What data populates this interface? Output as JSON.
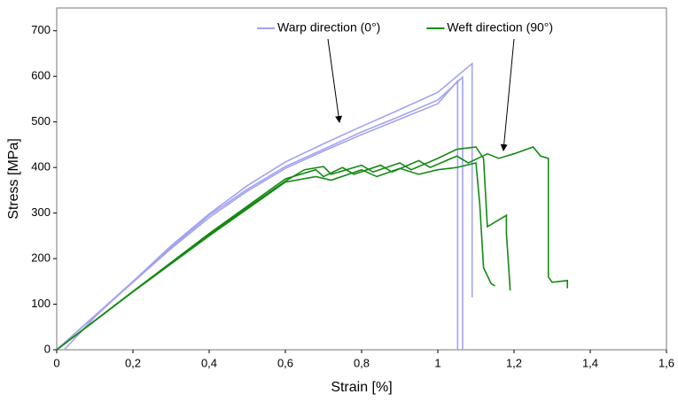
{
  "chart_data": {
    "type": "line",
    "x_label": "Strain [%]",
    "y_label": "Stress [MPa]",
    "xlim": [
      0,
      1.6
    ],
    "ylim": [
      0,
      750
    ],
    "xticks": [
      0,
      {
        "value": 0.2,
        "label": "0,2"
      },
      {
        "value": 0.4,
        "label": "0,4"
      },
      {
        "value": 0.6,
        "label": "0,6"
      },
      {
        "value": 0.8,
        "label": "0,8"
      },
      1,
      {
        "value": 1.2,
        "label": "1,2"
      },
      {
        "value": 1.4,
        "label": "1,4"
      },
      {
        "value": 1.6,
        "label": "1,6"
      }
    ],
    "yticks": [
      0,
      100,
      200,
      300,
      400,
      500,
      600,
      700
    ],
    "grid": false,
    "legend": "upper center",
    "series": [
      {
        "name": "Warp direction (0°)",
        "color": "#a3a3f0",
        "curves": [
          {
            "x": [
              0.02,
              0.1,
              0.2,
              0.3,
              0.4,
              0.5,
              0.6,
              0.7,
              0.8,
              0.9,
              1.0,
              1.09,
              1.09
            ],
            "y": [
              0,
              72,
              150,
              228,
              298,
              360,
              412,
              452,
              490,
              527,
              565,
              628,
              115
            ]
          },
          {
            "x": [
              0,
              0.1,
              0.2,
              0.3,
              0.4,
              0.5,
              0.6,
              0.7,
              0.8,
              0.9,
              1.0,
              1.065,
              1.065
            ],
            "y": [
              0,
              75,
              150,
              225,
              295,
              352,
              402,
              440,
              478,
              512,
              548,
              598,
              0
            ]
          },
          {
            "x": [
              0,
              0.1,
              0.2,
              0.3,
              0.4,
              0.5,
              0.6,
              0.7,
              0.8,
              0.9,
              1.0,
              1.052,
              1.052
            ],
            "y": [
              0,
              74,
              148,
              222,
              290,
              348,
              398,
              436,
              472,
              506,
              540,
              590,
              0
            ]
          }
        ]
      },
      {
        "name": "Weft direction (90°)",
        "color": "#138a13",
        "curves": [
          {
            "x": [
              0,
              0.2,
              0.4,
              0.6,
              0.68,
              0.7,
              0.75,
              0.78,
              0.85,
              0.88,
              0.95,
              0.98,
              1.05,
              1.08,
              1.13,
              1.16,
              1.2,
              1.25,
              1.27,
              1.29,
              1.29,
              1.3,
              1.34,
              1.34
            ],
            "y": [
              0,
              128,
              255,
              375,
              395,
              380,
              400,
              385,
              405,
              390,
              415,
              400,
              425,
              410,
              430,
              420,
              430,
              445,
              425,
              420,
              160,
              148,
              152,
              135
            ]
          },
          {
            "x": [
              0,
              0.2,
              0.4,
              0.6,
              0.65,
              0.7,
              0.72,
              0.8,
              0.83,
              0.9,
              0.93,
              1.0,
              1.05,
              1.1,
              1.12,
              1.13,
              1.18,
              1.18,
              1.19
            ],
            "y": [
              0,
              128,
              253,
              370,
              395,
              402,
              385,
              405,
              390,
              410,
              395,
              420,
              440,
              445,
              420,
              270,
              295,
              255,
              130
            ]
          },
          {
            "x": [
              0,
              0.2,
              0.4,
              0.6,
              0.68,
              0.72,
              0.8,
              0.84,
              0.9,
              0.95,
              1.0,
              1.05,
              1.1,
              1.11,
              1.12,
              1.14,
              1.15
            ],
            "y": [
              0,
              127,
              250,
              368,
              380,
              372,
              395,
              380,
              398,
              385,
              395,
              400,
              410,
              320,
              180,
              145,
              140
            ]
          }
        ]
      }
    ]
  }
}
